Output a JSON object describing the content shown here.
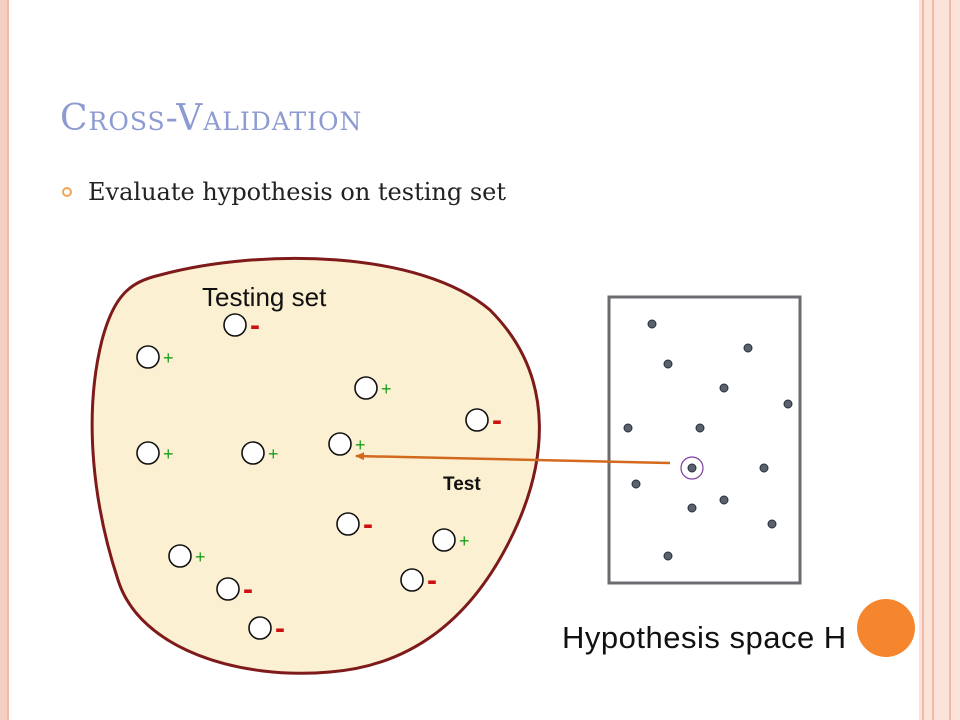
{
  "slide": {
    "title": "Cross-Validation",
    "bullet": "Evaluate hypothesis on testing set"
  },
  "diagram": {
    "testing_set_label": "Testing set",
    "test_label": "Test",
    "hypothesis_label": "Hypothesis space H",
    "plus_symbol": "+",
    "minus_symbol": "-",
    "colors": {
      "blob_fill": "#fcf0d2",
      "blob_stroke": "#7e1a1a",
      "plus": "#1b9e1b",
      "minus": "#cc1111",
      "arrow": "#d2691e",
      "selected_ring": "#7b3fa0",
      "highlight": "#f5862e"
    }
  }
}
